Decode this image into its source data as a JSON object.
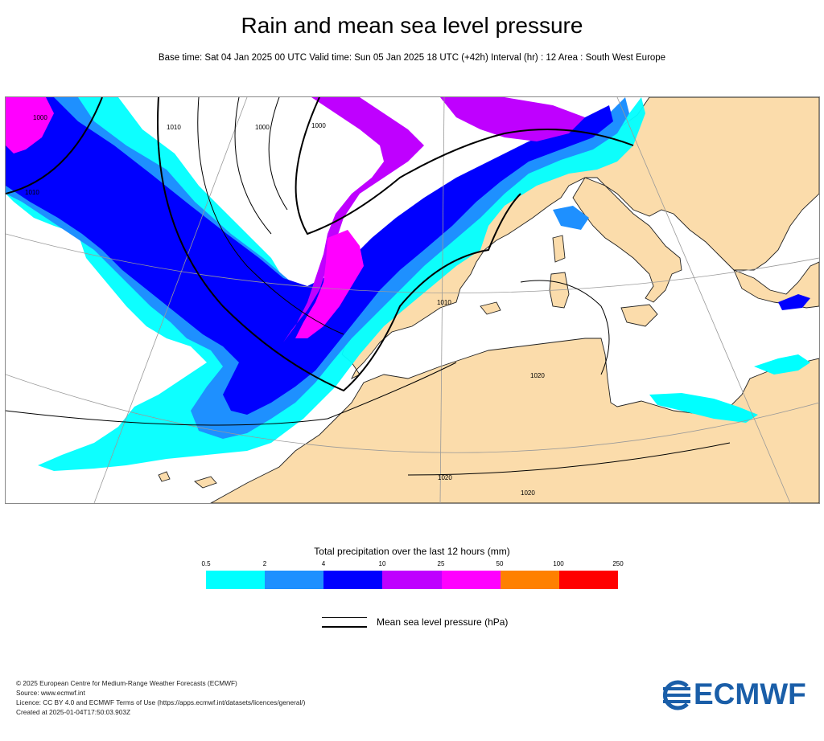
{
  "title": "Rain and mean sea level pressure",
  "subtitle": "Base time: Sat 04 Jan 2025 00 UTC Valid time: Sun 05 Jan 2025 18 UTC (+42h) Interval (hr) : 12 Area : South West Europe",
  "map": {
    "isobar_labels": [
      "1000",
      "1010",
      "1010",
      "1000",
      "1000",
      "1010",
      "1020",
      "1020",
      "1020"
    ]
  },
  "legend": {
    "title": "Total precipitation over the last 12 hours (mm)",
    "ticks": [
      "0.5",
      "2",
      "4",
      "10",
      "25",
      "50",
      "100",
      "250"
    ],
    "colors": [
      "#00ffff",
      "#1e90ff",
      "#0000ff",
      "#bf00ff",
      "#ff00ff",
      "#ff8000",
      "#ff0000"
    ],
    "mslp_label": "Mean sea level pressure (hPa)"
  },
  "colors": {
    "land": "#fbdcab",
    "sea": "#ffffff",
    "coast": "#000000",
    "logo": "#1a5ea8"
  },
  "footer": {
    "lines": [
      "© 2025 European Centre for Medium-Range Weather Forecasts (ECMWF)",
      "Source: www.ecmwf.int",
      "Licence: CC BY 4.0 and ECMWF Terms of Use (https://apps.ecmwf.int/datasets/licences/general/)",
      "Created at 2025-01-04T17:50:03.903Z"
    ]
  },
  "logo": {
    "text": "ECMWF"
  }
}
